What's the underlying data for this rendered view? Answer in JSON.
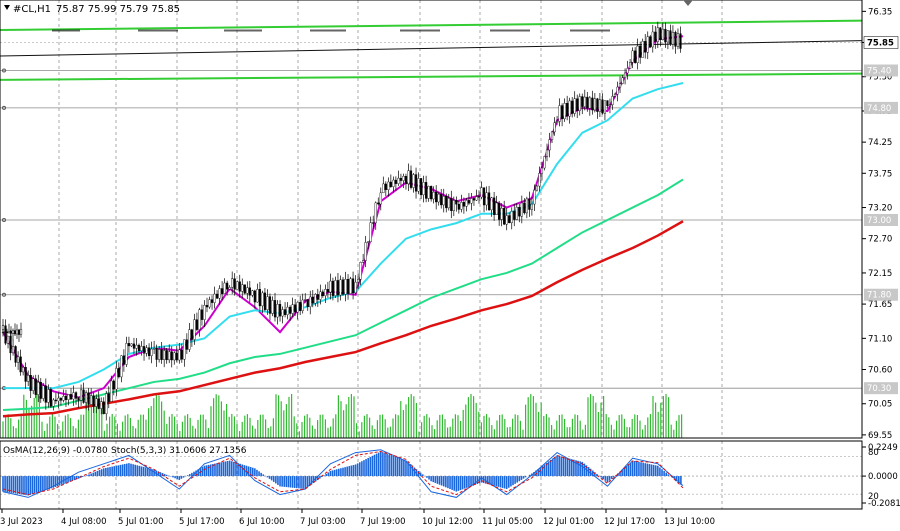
{
  "header": {
    "title": "#CL,H1",
    "ohlc": "75.87 75.99 75.79 75.85"
  },
  "chart_data": {
    "type": "candlestick",
    "symbol": "#CL",
    "timeframe": "H1",
    "ylim": [
      69.5,
      76.5
    ],
    "price_ticks": [
      76.35,
      75.85,
      75.3,
      74.75,
      74.25,
      73.75,
      73.2,
      72.7,
      72.15,
      71.65,
      71.1,
      70.6,
      70.05,
      69.55
    ],
    "x_labels": [
      "3 Jul 2023",
      "4 Jul 08:00",
      "5 Jul 01:00",
      "5 Jul 17:00",
      "6 Jul 10:00",
      "7 Jul 03:00",
      "7 Jul 19:00",
      "10 Jul 12:00",
      "11 Jul 05:00",
      "12 Jul 01:00",
      "12 Jul 17:00",
      "13 Jul 10:00"
    ],
    "current_price": 75.85,
    "levels": [
      {
        "label": "75.40",
        "value": 75.4,
        "color": "#8a8a8a"
      },
      {
        "label": "74.80",
        "value": 74.8,
        "color": "#8a8a8a"
      },
      {
        "label": "73.00",
        "value": 73.0,
        "color": "#8a8a8a"
      },
      {
        "label": "71.80",
        "value": 71.8,
        "color": "#8a8a8a"
      },
      {
        "label": "70.30",
        "value": 70.3,
        "color": "#8a8a8a"
      }
    ],
    "trend_channel": {
      "color": "#33cc33",
      "upper_left": 76.05,
      "upper_right": 76.2,
      "lower_left": 75.25,
      "lower_right": 75.35
    },
    "moving_averages": [
      {
        "color": "#cc00cc",
        "values": [
          71.2,
          70.5,
          70.25,
          70.15,
          70.3,
          70.8,
          70.95,
          70.9,
          71.3,
          71.9,
          71.6,
          71.2,
          71.7,
          71.85,
          71.8,
          73.3,
          73.6,
          73.5,
          73.3,
          73.4,
          73.2,
          73.35,
          74.6,
          74.8,
          74.75,
          75.55,
          75.9,
          75.95
        ]
      },
      {
        "color": "#33ddee",
        "values": [
          70.3,
          70.3,
          70.3,
          70.4,
          70.6,
          70.85,
          70.95,
          71.0,
          71.1,
          71.45,
          71.55,
          71.5,
          71.6,
          71.75,
          71.85,
          72.3,
          72.7,
          72.85,
          72.95,
          73.1,
          73.1,
          73.25,
          73.9,
          74.4,
          74.6,
          74.95,
          75.1,
          75.2
        ]
      },
      {
        "color": "#22dd88",
        "values": [
          69.95,
          69.97,
          70.0,
          70.1,
          70.2,
          70.3,
          70.4,
          70.45,
          70.55,
          70.7,
          70.8,
          70.85,
          70.95,
          71.05,
          71.15,
          71.35,
          71.55,
          71.75,
          71.9,
          72.05,
          72.15,
          72.3,
          72.55,
          72.8,
          73.0,
          73.2,
          73.4,
          73.65
        ]
      },
      {
        "color": "#dd1111",
        "values": [
          69.85,
          69.88,
          69.9,
          69.98,
          70.05,
          70.12,
          70.2,
          70.25,
          70.35,
          70.45,
          70.55,
          70.62,
          70.72,
          70.8,
          70.88,
          71.02,
          71.15,
          71.3,
          71.42,
          71.55,
          71.65,
          71.78,
          72.0,
          72.2,
          72.38,
          72.55,
          72.75,
          72.98
        ]
      }
    ],
    "candles_close": [
      71.2,
      70.4,
      70.1,
      70.2,
      70.0,
      71.0,
      70.85,
      70.8,
      71.6,
      72.0,
      71.8,
      71.5,
      71.65,
      71.9,
      71.95,
      73.5,
      73.7,
      73.4,
      73.2,
      73.4,
      73.0,
      73.3,
      74.7,
      74.9,
      74.8,
      75.6,
      76.0,
      75.85
    ],
    "osma": {
      "label": "OsMA(12,26,9) -0.0780",
      "stoch_label": "Stoch(5,3,3) 31.0606 27.1356",
      "ylim": [
        -0.2081,
        0.2249
      ],
      "ticks": [
        0.2249,
        0.0,
        -0.2081
      ],
      "stoch_ticks": [
        80,
        20
      ],
      "histogram": [
        -0.12,
        -0.15,
        -0.09,
        -0.02,
        0.06,
        0.1,
        0.05,
        -0.03,
        0.08,
        0.12,
        0.06,
        -0.08,
        -0.1,
        0.04,
        0.09,
        0.19,
        0.12,
        -0.04,
        -0.12,
        -0.05,
        -0.1,
        0.02,
        0.16,
        0.11,
        -0.05,
        0.12,
        0.08,
        -0.08
      ],
      "stoch_main": [
        20,
        10,
        30,
        55,
        70,
        85,
        55,
        25,
        70,
        85,
        40,
        15,
        25,
        70,
        90,
        95,
        75,
        20,
        10,
        45,
        15,
        50,
        90,
        65,
        30,
        80,
        70,
        31
      ],
      "stoch_signal": [
        25,
        15,
        25,
        45,
        65,
        80,
        60,
        30,
        60,
        80,
        45,
        20,
        25,
        60,
        85,
        92,
        78,
        30,
        15,
        40,
        20,
        45,
        85,
        70,
        35,
        75,
        72,
        27
      ]
    }
  }
}
